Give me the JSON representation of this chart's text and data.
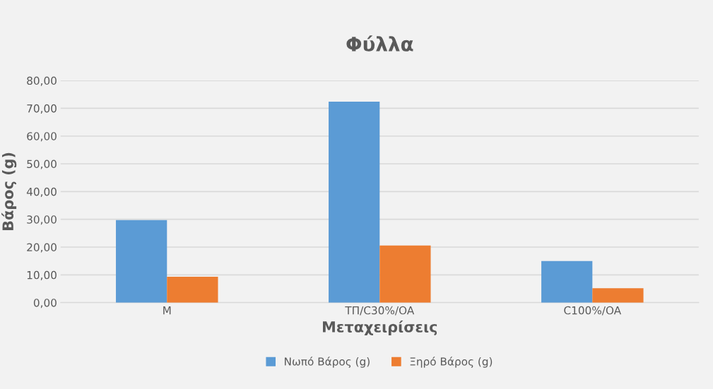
{
  "chart_data": {
    "type": "bar",
    "title": "Φύλλα",
    "xlabel": "Μεταχειρίσεις",
    "ylabel": "Βάρος (g)",
    "categories": [
      "M",
      "ΤΠ/C30%/OA",
      "C100%/OA"
    ],
    "series": [
      {
        "name": "Νωπό Βάρος (g)",
        "color": "#5b9bd5",
        "values": [
          29.7,
          72.4,
          15.0
        ]
      },
      {
        "name": "Ξηρό Βάρος (g)",
        "color": "#ed7d31",
        "values": [
          9.3,
          20.6,
          5.2
        ]
      }
    ],
    "ylim": [
      0,
      80
    ],
    "yticks": [
      {
        "value": 0,
        "label": "0,00"
      },
      {
        "value": 10,
        "label": "10,00"
      },
      {
        "value": 20,
        "label": "20,00"
      },
      {
        "value": 30,
        "label": "30,00"
      },
      {
        "value": 40,
        "label": "40,00"
      },
      {
        "value": 50,
        "label": "50,00"
      },
      {
        "value": 60,
        "label": "60,00"
      },
      {
        "value": 70,
        "label": "70,00"
      },
      {
        "value": 80,
        "label": "80,00"
      }
    ],
    "grid": "y",
    "legend": "bottom"
  }
}
